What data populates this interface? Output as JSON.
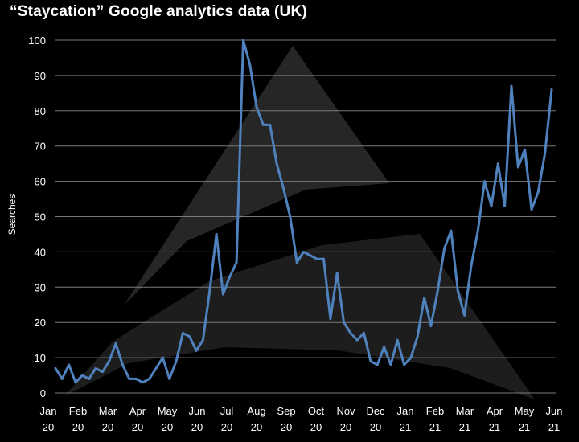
{
  "chart_data": {
    "type": "line",
    "title": "“Staycation” Google analytics data (UK)",
    "xlabel": "",
    "ylabel": "Searches",
    "ylim": [
      0,
      100
    ],
    "yticks": [
      0,
      10,
      20,
      30,
      40,
      50,
      60,
      70,
      80,
      90,
      100
    ],
    "grid": true,
    "line_color": "#4f81bd",
    "background_color": "#000000",
    "x_tick_labels": [
      [
        "Jan",
        "20"
      ],
      [
        "Feb",
        "20"
      ],
      [
        "Mar",
        "20"
      ],
      [
        "Apr",
        "20"
      ],
      [
        "May",
        "20"
      ],
      [
        "Jun",
        "20"
      ],
      [
        "Jul",
        "20"
      ],
      [
        "Aug",
        "20"
      ],
      [
        "Sep",
        "20"
      ],
      [
        "Oct",
        "20"
      ],
      [
        "Nov",
        "20"
      ],
      [
        "Dec",
        "20"
      ],
      [
        "Jan",
        "21"
      ],
      [
        "Feb",
        "21"
      ],
      [
        "Mar",
        "21"
      ],
      [
        "Apr",
        "21"
      ],
      [
        "May",
        "21"
      ],
      [
        "Jun",
        "21"
      ]
    ],
    "series": [
      {
        "values": [
          7,
          4,
          8,
          3,
          5,
          4,
          7,
          6,
          9,
          14,
          8,
          4,
          4,
          3,
          4,
          7,
          10,
          4,
          9,
          17,
          16,
          12,
          15,
          29,
          45,
          28,
          33,
          37,
          100,
          93,
          81,
          76,
          76,
          65,
          58,
          50,
          37,
          40,
          39,
          38,
          38,
          21,
          34,
          20,
          17,
          15,
          17,
          9,
          8,
          13,
          8,
          15,
          8,
          10,
          16,
          27,
          19,
          29,
          41,
          46,
          29,
          22,
          36,
          46,
          60,
          53,
          65,
          53,
          87,
          64,
          69,
          52,
          57,
          68,
          86
        ]
      }
    ]
  }
}
